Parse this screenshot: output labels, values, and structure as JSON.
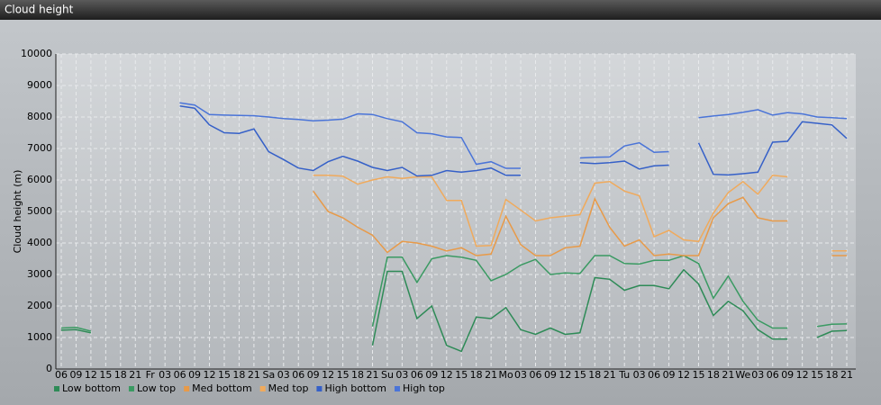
{
  "chart_data": {
    "type": "line",
    "title": "Cloud height",
    "y_label": "Cloud height (m)",
    "categories": [
      "06",
      "09",
      "12",
      "15",
      "18",
      "21",
      "Fr",
      "03",
      "06",
      "09",
      "12",
      "15",
      "18",
      "21",
      "Sa",
      "03",
      "06",
      "09",
      "12",
      "15",
      "18",
      "21",
      "Su",
      "03",
      "06",
      "09",
      "12",
      "15",
      "18",
      "21",
      "Mo",
      "03",
      "06",
      "09",
      "12",
      "15",
      "18",
      "21",
      "Tu",
      "03",
      "06",
      "09",
      "12",
      "15",
      "18",
      "21",
      "We",
      "03",
      "06",
      "09",
      "12",
      "15",
      "18",
      "21"
    ],
    "ylim": [
      0,
      10000
    ],
    "yticks": [
      0,
      1000,
      2000,
      3000,
      4000,
      5000,
      6000,
      7000,
      8000,
      9000,
      10000
    ],
    "grid": true,
    "series": [
      {
        "name": "Low bottom",
        "color": "#2e8b57",
        "values": [
          1230,
          1250,
          1150,
          null,
          null,
          null,
          null,
          null,
          null,
          null,
          null,
          null,
          null,
          null,
          null,
          null,
          null,
          null,
          null,
          null,
          null,
          750,
          3100,
          3100,
          1600,
          2000,
          750,
          560,
          1650,
          1600,
          1950,
          1250,
          1100,
          1300,
          1100,
          1150,
          2900,
          2850,
          2500,
          2650,
          2650,
          2550,
          3150,
          2700,
          1700,
          2150,
          1850,
          1250,
          950,
          950,
          null,
          1000,
          1200,
          1220
        ]
      },
      {
        "name": "Low top",
        "color": "#3a9a62",
        "values": [
          1300,
          1320,
          1200,
          null,
          null,
          null,
          null,
          null,
          null,
          null,
          null,
          null,
          null,
          null,
          null,
          null,
          null,
          null,
          null,
          null,
          null,
          1350,
          3550,
          3550,
          2750,
          3500,
          3600,
          3550,
          3450,
          2800,
          3000,
          3300,
          3480,
          3000,
          3050,
          3030,
          3600,
          3600,
          3350,
          3330,
          3450,
          3450,
          3600,
          3350,
          2250,
          2950,
          2150,
          1550,
          1300,
          1300,
          null,
          1350,
          1420,
          1430
        ]
      },
      {
        "name": "Med bottom",
        "color": "#e89a48",
        "values": [
          null,
          null,
          null,
          null,
          null,
          null,
          null,
          null,
          null,
          null,
          null,
          null,
          null,
          null,
          null,
          null,
          null,
          5650,
          5000,
          4800,
          4500,
          4250,
          3700,
          4050,
          4000,
          3900,
          3750,
          3850,
          3600,
          3650,
          4850,
          3950,
          3600,
          3600,
          3850,
          3900,
          5400,
          4500,
          3900,
          4100,
          3600,
          3650,
          3600,
          3600,
          4800,
          5250,
          5450,
          4800,
          4700,
          4700,
          null,
          null,
          3600,
          3600
        ]
      },
      {
        "name": "Med top",
        "color": "#f0aa5c",
        "values": [
          null,
          null,
          null,
          null,
          null,
          null,
          null,
          null,
          null,
          null,
          null,
          null,
          null,
          null,
          null,
          null,
          null,
          6150,
          6150,
          6120,
          5870,
          6000,
          6100,
          6050,
          6100,
          6100,
          5350,
          5350,
          3900,
          3920,
          5380,
          5050,
          4700,
          4800,
          4850,
          4900,
          5900,
          5950,
          5650,
          5500,
          4200,
          4400,
          4100,
          4050,
          4950,
          5600,
          5950,
          5550,
          6150,
          6100,
          null,
          null,
          3750,
          3750
        ]
      },
      {
        "name": "High bottom",
        "color": "#3560c8",
        "values": [
          null,
          null,
          null,
          null,
          null,
          null,
          null,
          null,
          8350,
          8280,
          7750,
          7500,
          7480,
          7620,
          6900,
          6650,
          6380,
          6300,
          6580,
          6750,
          6600,
          6400,
          6300,
          6400,
          6130,
          6150,
          6300,
          6250,
          6300,
          6380,
          6150,
          6150,
          null,
          null,
          null,
          6550,
          6520,
          6550,
          6600,
          6350,
          6450,
          6470,
          null,
          7180,
          6180,
          6160,
          6200,
          6250,
          7200,
          7230,
          7850,
          7800,
          7750,
          7320
        ]
      },
      {
        "name": "High top",
        "color": "#4a74d8",
        "values": [
          null,
          null,
          null,
          null,
          null,
          null,
          null,
          null,
          8450,
          8380,
          8080,
          8060,
          8050,
          8040,
          8000,
          7950,
          7920,
          7880,
          7900,
          7930,
          8100,
          8080,
          7950,
          7850,
          7500,
          7470,
          7370,
          7350,
          6500,
          6580,
          6370,
          6370,
          null,
          null,
          null,
          6700,
          6720,
          6730,
          7080,
          7180,
          6880,
          6900,
          null,
          7980,
          8030,
          8080,
          8150,
          8230,
          8060,
          8140,
          8100,
          8000,
          7980,
          7950
        ]
      }
    ]
  }
}
